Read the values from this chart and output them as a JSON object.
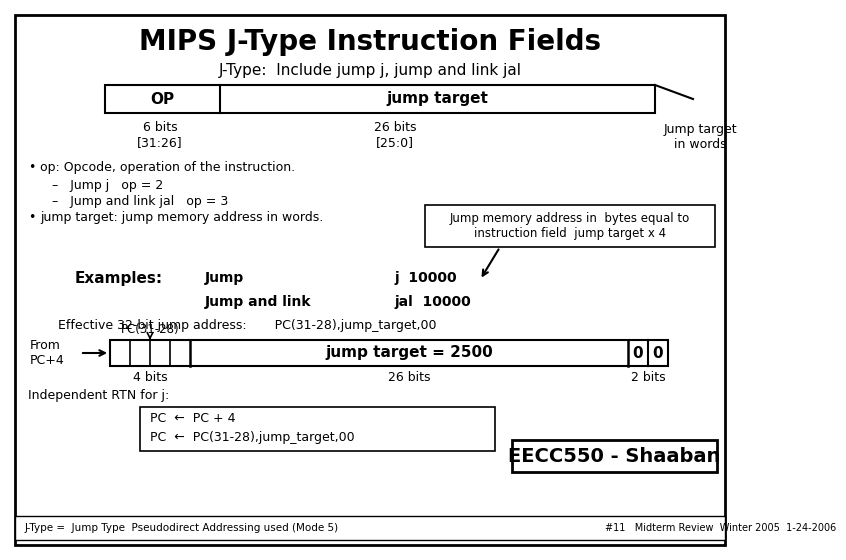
{
  "title": "MIPS J-Type Instruction Fields",
  "subtitle": "J-Type:  Include jump j, jump and link jal",
  "bg_color": "#ffffff",
  "field1_label": "OP",
  "field2_label": "jump target",
  "field1_bits": "6 bits\n[31:26]",
  "field2_bits": "26 bits\n[25:0]",
  "field_note": "Jump target\nin words",
  "bullet1": "op: Opcode, operation of the instruction.",
  "sub1a": "–   Jump j   op = 2",
  "sub1b": "–   Jump and link jal   op = 3",
  "bullet2": "jump target: jump memory address in words.",
  "callout": "Jump memory address in  bytes equal to\ninstruction field  jump target x 4",
  "examples_label": "Examples:",
  "ex1_label": "Jump",
  "ex1_val": "j  10000",
  "ex2_label": "Jump and link",
  "ex2_val": "jal  10000",
  "eff_addr": "Effective 32-bit jump address:       PC(31-28),jump_target,00",
  "from_label": "From\nPC+4",
  "pc_label": "PC(31-28)",
  "reg_center": "jump target = 2500",
  "reg_right1": "0",
  "reg_right2": "0",
  "bits_4": "4 bits",
  "bits_26": "26 bits",
  "bits_2": "2 bits",
  "rtn_label": "Independent RTN for j:",
  "rtn_line1": "PC  ←  PC + 4",
  "rtn_line2": "PC  ←  PC(31-28),jump_target,00",
  "bottom_left": "J-Type =  Jump Type  Pseudodirect Addressing used (Mode 5)",
  "bottom_right1": "EECC550 - Shaaban",
  "bottom_right2": "#11   Midterm Review  Winter 2005  1-24-2006"
}
